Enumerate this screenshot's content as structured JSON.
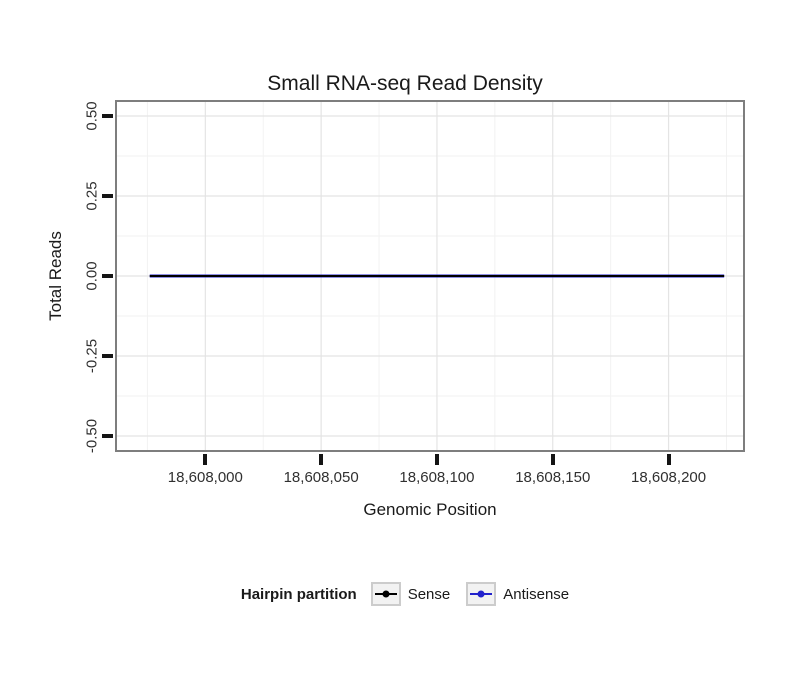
{
  "chart_data": {
    "type": "line",
    "title": "Small RNA-seq Read Density",
    "xlabel": "Genomic Position",
    "ylabel": "Total Reads",
    "xlim": [
      18607976,
      18608224
    ],
    "ylim": [
      -0.5,
      0.5
    ],
    "x_display_range": [
      18607961,
      18608233
    ],
    "y_display_range": [
      -0.55,
      0.55
    ],
    "x_ticks": [
      18608000,
      18608050,
      18608100,
      18608150,
      18608200
    ],
    "x_tick_labels": [
      "18,608,000",
      "18,608,050",
      "18,608,100",
      "18,608,150",
      "18,608,200"
    ],
    "y_ticks": [
      0.5,
      0.25,
      0,
      -0.25,
      -0.5
    ],
    "y_tick_labels": [
      "0.50",
      "0.25",
      "0.00",
      "-0.25",
      "-0.50"
    ],
    "grid": true,
    "legend": {
      "title": "Hairpin partition",
      "position": "bottom"
    },
    "legend_entries": [
      {
        "label": "Sense",
        "color": "#000000"
      },
      {
        "label": "Antisense",
        "color": "#2222CC"
      }
    ],
    "series": [
      {
        "name": "Antisense",
        "color": "#2222CC",
        "width": 3,
        "x": [
          18607976,
          18608224
        ],
        "y": [
          0,
          0
        ]
      },
      {
        "name": "Sense",
        "color": "#000000",
        "width": 2,
        "x": [
          18607976,
          18608224
        ],
        "y": [
          0,
          0
        ]
      }
    ],
    "colors": {
      "grid_major": "#e4e4e4",
      "grid_minor": "#f2f2f2",
      "panel_border": "#7e7e7e",
      "tick": "#141414",
      "text": "#1a1a1a"
    }
  }
}
